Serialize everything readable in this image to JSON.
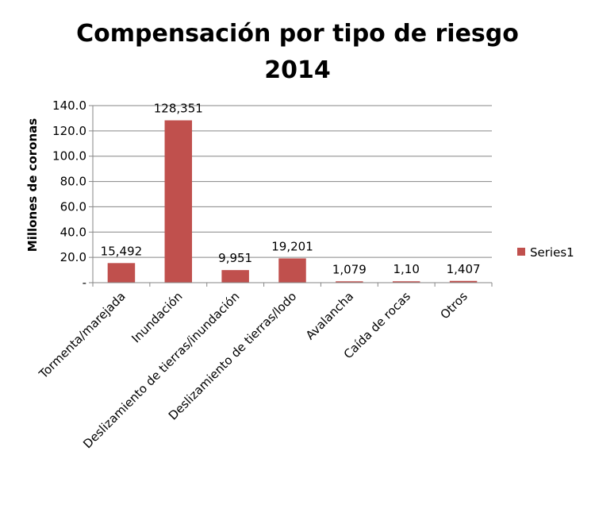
{
  "chart_data": {
    "type": "bar",
    "title": "Compensación por tipo de riesgo",
    "subtitle": "2014",
    "ylabel": "Millones de coronas",
    "xlabel": "",
    "ylim": [
      0,
      140
    ],
    "yticks": [
      0,
      20,
      40,
      60,
      80,
      100,
      120,
      140
    ],
    "ytick_labels": [
      "-",
      "20.0",
      "40.0",
      "60.0",
      "80.0",
      "100.0",
      "120.0",
      "140.0"
    ],
    "grid": true,
    "legend": "right",
    "bar_color": "#c0504d",
    "categories": [
      "Tormenta/marejada",
      "Inundación",
      "Deslizamiento de tierras/inundación",
      "Deslizamiento de tierras/lodo",
      "Avalancha",
      "Caída de rocas",
      "Otros"
    ],
    "series": [
      {
        "name": "Series1",
        "values": [
          15.492,
          128.351,
          9.951,
          19.201,
          1.079,
          1.1,
          1.407
        ],
        "data_labels": [
          "15,492",
          "128,351",
          "9,951",
          "19,201",
          "1,079",
          "1,10",
          "1,407"
        ]
      }
    ]
  }
}
